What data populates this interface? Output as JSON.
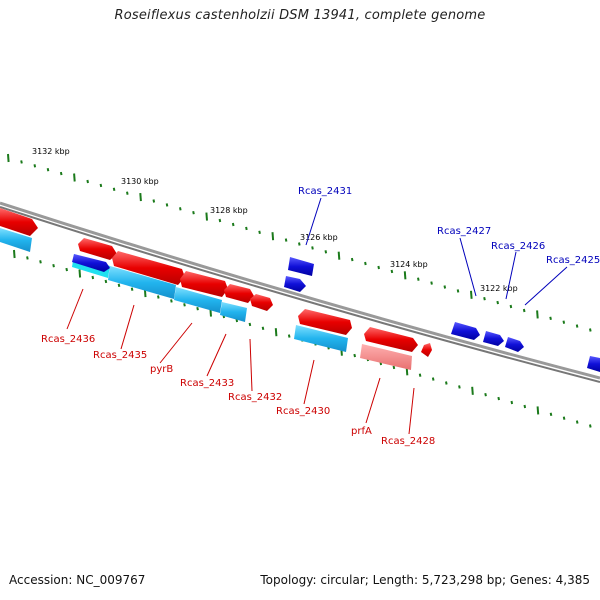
{
  "title": "Roseiflexus castenholzii DSM 13941, complete genome",
  "footer": {
    "accession": "Accession: NC_009767",
    "topology": "Topology: circular; Length: 5,723,298 bp; Genes: 4,385"
  },
  "scale_labels": [
    "3132 kbp",
    "3130 kbp",
    "3128 kbp",
    "3126 kbp",
    "3124 kbp",
    "3122 kbp"
  ],
  "gene_labels": {
    "rcas_2436": "Rcas_2436",
    "rcas_2435": "Rcas_2435",
    "pyrb": "pyrB",
    "rcas_2433": "Rcas_2433",
    "rcas_2432": "Rcas_2432",
    "rcas_2430": "Rcas_2430",
    "prfa": "prfA",
    "rcas_2428": "Rcas_2428",
    "rcas_2431": "Rcas_2431",
    "rcas_2427": "Rcas_2427",
    "rcas_2426": "Rcas_2426",
    "rcas_2425": "Rcas_2425"
  },
  "colors": {
    "reverse_gene": "#e80000",
    "forward_gene": "#1010d8",
    "reverse_cds": "#22b4ee",
    "forward_cds": "#20e0f0",
    "backbone": "#888888",
    "tick": "#1b7a1b",
    "reverse_label": "#cc0000",
    "forward_label": "#0000bb"
  }
}
